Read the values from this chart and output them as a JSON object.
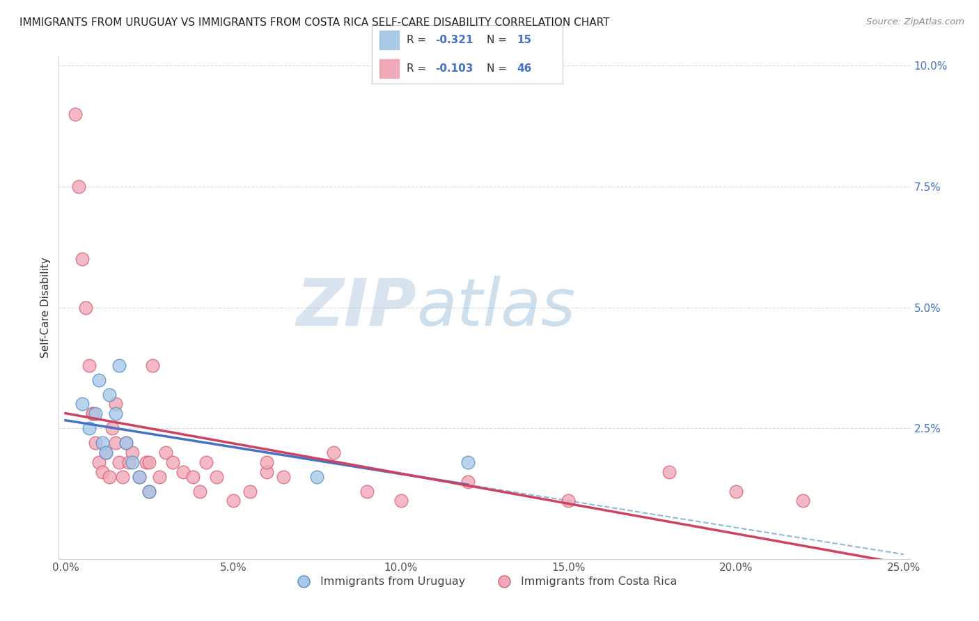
{
  "title": "IMMIGRANTS FROM URUGUAY VS IMMIGRANTS FROM COSTA RICA SELF-CARE DISABILITY CORRELATION CHART",
  "source": "Source: ZipAtlas.com",
  "ylabel": "Self-Care Disability",
  "xlabel": "",
  "xlim": [
    -0.002,
    0.252
  ],
  "ylim": [
    -0.002,
    0.102
  ],
  "xticks": [
    0.0,
    0.05,
    0.1,
    0.15,
    0.2,
    0.25
  ],
  "xticklabels": [
    "0.0%",
    "5.0%",
    "10.0%",
    "15.0%",
    "20.0%",
    "25.0%"
  ],
  "yticks": [
    0.025,
    0.05,
    0.075,
    0.1
  ],
  "yticklabels": [
    "2.5%",
    "5.0%",
    "7.5%",
    "10.0%"
  ],
  "uruguay_color": "#a8c8e8",
  "uruguay_edge": "#5090c8",
  "costarica_color": "#f0a8b8",
  "costarica_edge": "#d86070",
  "uruguay_R": -0.321,
  "uruguay_N": 15,
  "costarica_R": -0.103,
  "costarica_N": 46,
  "uruguay_scatter_x": [
    0.005,
    0.007,
    0.009,
    0.01,
    0.011,
    0.012,
    0.013,
    0.015,
    0.016,
    0.018,
    0.02,
    0.022,
    0.025,
    0.075,
    0.12
  ],
  "uruguay_scatter_y": [
    0.03,
    0.025,
    0.028,
    0.035,
    0.022,
    0.02,
    0.032,
    0.028,
    0.038,
    0.022,
    0.018,
    0.015,
    0.012,
    0.015,
    0.018
  ],
  "costarica_scatter_x": [
    0.003,
    0.004,
    0.005,
    0.006,
    0.007,
    0.008,
    0.009,
    0.01,
    0.011,
    0.012,
    0.013,
    0.014,
    0.015,
    0.016,
    0.017,
    0.018,
    0.019,
    0.02,
    0.022,
    0.024,
    0.025,
    0.026,
    0.028,
    0.03,
    0.032,
    0.035,
    0.038,
    0.04,
    0.042,
    0.045,
    0.05,
    0.055,
    0.06,
    0.065,
    0.08,
    0.09,
    0.1,
    0.12,
    0.15,
    0.18,
    0.2,
    0.22,
    0.008,
    0.015,
    0.025,
    0.06
  ],
  "costarica_scatter_y": [
    0.09,
    0.075,
    0.06,
    0.05,
    0.038,
    0.028,
    0.022,
    0.018,
    0.016,
    0.02,
    0.015,
    0.025,
    0.022,
    0.018,
    0.015,
    0.022,
    0.018,
    0.02,
    0.015,
    0.018,
    0.012,
    0.038,
    0.015,
    0.02,
    0.018,
    0.016,
    0.015,
    0.012,
    0.018,
    0.015,
    0.01,
    0.012,
    0.016,
    0.015,
    0.02,
    0.012,
    0.01,
    0.014,
    0.01,
    0.016,
    0.012,
    0.01,
    0.028,
    0.03,
    0.018,
    0.018
  ],
  "grid_color": "#cccccc",
  "background_color": "#ffffff",
  "watermark_zip_color": "#b8cce4",
  "watermark_atlas_color": "#90b8d8",
  "regression_blue_color": "#4472c4",
  "regression_pink_color": "#d04060",
  "regression_dashed_color": "#90b8d8",
  "uruguay_regress_intercept": 0.028,
  "uruguay_regress_slope": -0.12,
  "costarica_regress_intercept": 0.03,
  "costarica_regress_slope": -0.075
}
